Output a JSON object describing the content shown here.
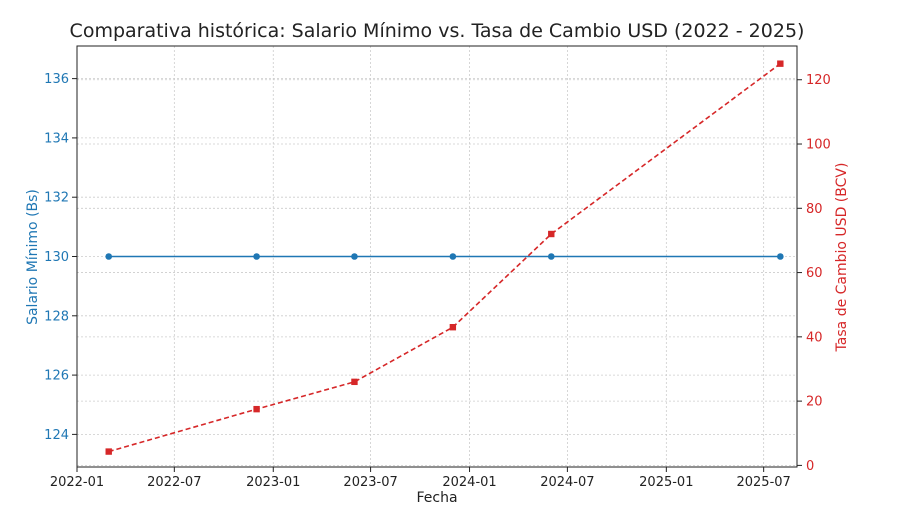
{
  "chart_data": {
    "type": "line",
    "title": "Comparativa histórica: Salario Mínimo vs. Tasa de Cambio USD (2022 - 2025)",
    "xlabel": "Fecha",
    "ylabel_left": "Salario Mínimo (Bs)",
    "ylabel_right": "Tasa de Cambio USD (BCV)",
    "x_ticks": [
      "2022-01",
      "2022-07",
      "2023-01",
      "2023-07",
      "2024-01",
      "2024-07",
      "2025-01",
      "2025-07"
    ],
    "y_left_ticks": [
      124,
      126,
      128,
      130,
      132,
      134,
      136
    ],
    "y_right_ticks": [
      0,
      20,
      40,
      60,
      80,
      100,
      120
    ],
    "y_left_lim": [
      122.9,
      137.1
    ],
    "y_right_lim": [
      -0.5,
      130.5
    ],
    "x_lim": [
      "2022-01-01",
      "2025-09-01"
    ],
    "grid": true,
    "series": [
      {
        "axis": "left",
        "color": "#1f77b4",
        "style": "solid",
        "marker": "circle",
        "x": [
          "2022-03-01",
          "2022-12-01",
          "2023-06-01",
          "2023-12-01",
          "2024-06-01",
          "2025-08-01"
        ],
        "values": [
          130,
          130,
          130,
          130,
          130,
          130
        ]
      },
      {
        "axis": "right",
        "color": "#d62728",
        "style": "dashed",
        "marker": "square",
        "x": [
          "2022-03-01",
          "2022-12-01",
          "2023-06-01",
          "2023-12-01",
          "2024-06-01",
          "2025-08-01"
        ],
        "values": [
          4.3,
          17.5,
          26.0,
          43.0,
          72.0,
          125.0
        ]
      }
    ]
  }
}
